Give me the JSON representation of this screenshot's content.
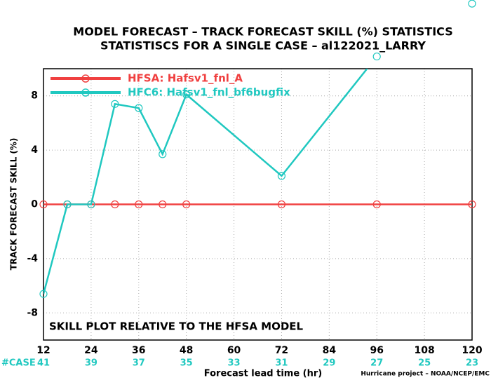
{
  "chart_data": {
    "type": "line",
    "title": "MODEL FORECAST – TRACK FORECAST SKILL (%) STATISTICS",
    "subtitle": "STATISTISCS FOR A SINGLE CASE – al122021_LARRY",
    "x_label": "Forecast lead time (hr)",
    "y_label": "TRACK FORECAST SKILL (%)",
    "x": [
      12,
      18,
      24,
      30,
      36,
      42,
      48,
      72,
      96,
      120
    ],
    "series": [
      {
        "name": "HFSA: Hafsv1_fnl_A",
        "color": "#f04040",
        "values": [
          0,
          0,
          0,
          0,
          0,
          0,
          0,
          0,
          0,
          0
        ]
      },
      {
        "name": "HFC6: Hafsv1_fnl_bf6bugfix",
        "color": "#20c8c0",
        "values": [
          -6.6,
          0,
          0,
          7.4,
          7.1,
          3.7,
          8.1,
          2.1,
          10.9,
          14.8
        ]
      }
    ],
    "xlim": [
      12,
      120
    ],
    "xticks": [
      12,
      24,
      36,
      48,
      60,
      72,
      84,
      96,
      108,
      120
    ],
    "ylim": [
      -10,
      10
    ],
    "yticks": [
      -8,
      -4,
      0,
      4,
      8
    ],
    "grid": true,
    "case_label": "#CASE",
    "case_counts": [
      41,
      39,
      37,
      35,
      33,
      31,
      29,
      27,
      25,
      23
    ],
    "annotation": "SKILL PLOT RELATIVE TO THE HFSA MODEL",
    "credit": "Hurricane project – NOAA/NCEP/EMC"
  }
}
